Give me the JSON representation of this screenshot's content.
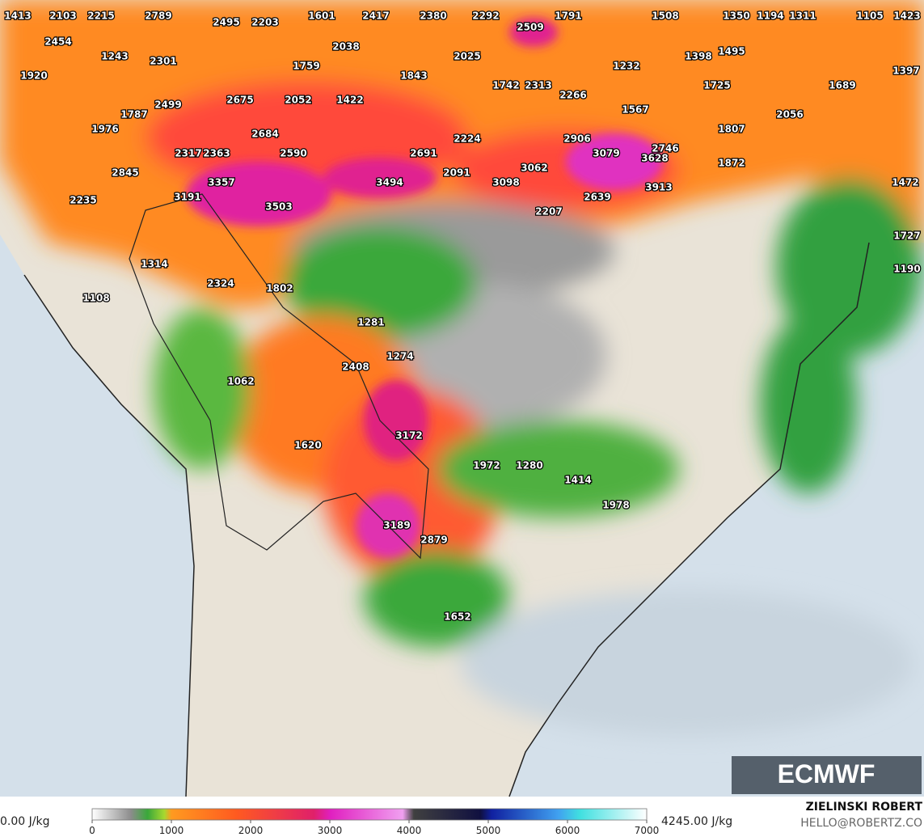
{
  "map": {
    "labels": [
      1413,
      2103,
      2215,
      2789,
      2495,
      2203,
      1601,
      2417,
      2380,
      2292,
      2509,
      1791,
      1508,
      1350,
      1194,
      1311,
      1105,
      1423,
      2454,
      2038,
      1243,
      2301,
      1759,
      2025,
      1232,
      1398,
      1495,
      1397,
      1920,
      1843,
      1742,
      2313,
      1725,
      1689,
      2675,
      2052,
      1422,
      2266,
      2499,
      1567,
      1787,
      2056,
      1976,
      2684,
      1807,
      2224,
      2906,
      3079,
      2746,
      2317,
      2363,
      2590,
      2691,
      3628,
      1872,
      2845,
      3062,
      2091,
      3357,
      3494,
      3098,
      3913,
      1472,
      3191,
      2639,
      2235,
      3503,
      2207,
      1727,
      1314,
      1190,
      2324,
      1802,
      1108,
      1281,
      1274,
      2408,
      1062,
      3172,
      1620,
      1972,
      1280,
      1414,
      1978,
      3189,
      2879,
      1652
    ]
  },
  "colorbar": {
    "min_label": "0.00 J/kg",
    "max_label": "4245.00 J/kg",
    "lim": [
      0,
      7000
    ],
    "ticks": [
      0,
      1000,
      2000,
      3000,
      4000,
      5000,
      6000,
      7000
    ]
  },
  "logo": "ECMWF",
  "credit": {
    "name": "ZIELINSKI ROBERT",
    "contact": "HELLO@ROBERTZ.CO"
  }
}
